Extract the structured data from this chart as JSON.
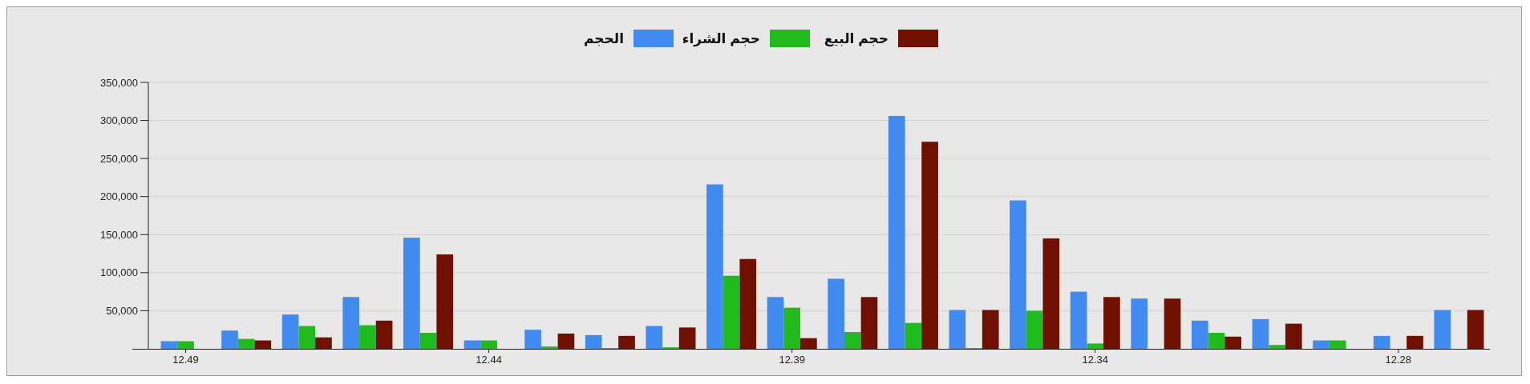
{
  "chart_data": {
    "type": "bar",
    "categories": [
      "12.49",
      null,
      null,
      null,
      null,
      "12.44",
      null,
      null,
      null,
      null,
      "12.39",
      null,
      null,
      null,
      null,
      "12.34",
      null,
      null,
      null,
      null,
      "12.28",
      null
    ],
    "series": [
      {
        "name": "الحجم",
        "color": "#418af0",
        "values": [
          10000,
          24000,
          45000,
          68000,
          146000,
          11000,
          25000,
          18000,
          30000,
          216000,
          68000,
          92000,
          306000,
          51000,
          195000,
          75000,
          66000,
          37000,
          39000,
          11000,
          17000,
          51000
        ]
      },
      {
        "name": "حجم الشراء",
        "color": "#22bb1e",
        "values": [
          10000,
          13000,
          30000,
          31000,
          21000,
          11000,
          3000,
          1000,
          2000,
          96000,
          54000,
          22000,
          34000,
          1000,
          50000,
          7000,
          0,
          21000,
          5000,
          11000,
          0,
          0
        ]
      },
      {
        "name": "حجم البيع",
        "color": "#701000",
        "values": [
          0,
          11000,
          15000,
          37000,
          124000,
          0,
          20000,
          17000,
          28000,
          118000,
          14000,
          68000,
          272000,
          51000,
          145000,
          68000,
          66000,
          16000,
          33000,
          0,
          17000,
          51000
        ]
      }
    ],
    "ylim": [
      0,
      350000
    ],
    "yticks": [
      {
        "value": 50000,
        "label": "50,000"
      },
      {
        "value": 100000,
        "label": "100,000"
      },
      {
        "value": 150000,
        "label": "150,000"
      },
      {
        "value": 200000,
        "label": "200,000"
      },
      {
        "value": 250000,
        "label": "250,000"
      },
      {
        "value": 300000,
        "label": "300,000"
      },
      {
        "value": 350000,
        "label": "350,000"
      }
    ],
    "grid": "y",
    "legend": "top"
  }
}
